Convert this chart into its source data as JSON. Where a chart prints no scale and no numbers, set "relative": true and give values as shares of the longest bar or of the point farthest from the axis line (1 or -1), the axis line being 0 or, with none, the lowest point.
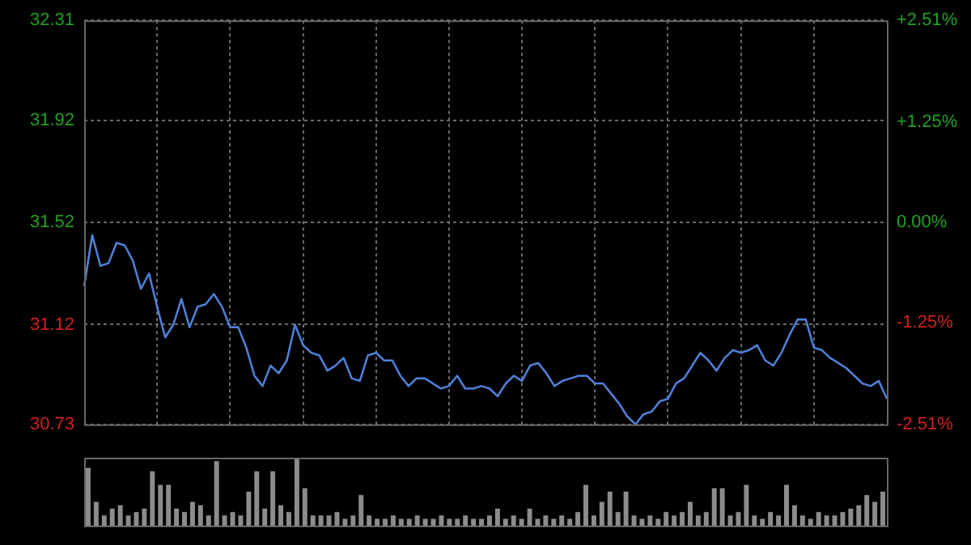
{
  "chart_data": [
    {
      "type": "line",
      "color": "#4f7fd6",
      "categories": [
        null,
        null,
        null,
        null,
        null,
        null,
        null,
        null,
        null,
        null,
        null,
        null,
        null,
        null,
        null,
        null,
        null,
        null,
        null,
        null,
        null,
        null,
        null,
        null,
        null,
        null,
        null,
        null,
        null,
        null,
        null,
        null,
        null,
        null,
        null,
        null,
        null,
        null,
        null,
        null,
        null,
        null,
        null,
        null,
        null,
        null,
        null,
        null,
        null,
        null,
        null,
        null,
        null,
        null,
        null,
        null,
        null,
        null,
        null,
        null,
        null,
        null,
        null,
        null,
        null,
        null,
        null,
        null,
        null,
        null,
        null,
        null,
        null,
        null,
        null,
        null,
        null,
        null,
        null,
        null,
        null,
        null,
        null,
        null,
        null,
        null,
        null,
        null,
        null,
        null,
        null,
        null,
        null,
        null,
        null,
        null,
        null,
        null,
        null,
        null
      ],
      "values": [
        31.27,
        31.47,
        31.35,
        31.36,
        31.44,
        31.43,
        31.37,
        31.26,
        31.32,
        31.19,
        31.07,
        31.12,
        31.22,
        31.11,
        31.19,
        31.2,
        31.24,
        31.19,
        31.11,
        31.11,
        31.03,
        30.92,
        30.88,
        30.96,
        30.93,
        30.98,
        31.12,
        31.04,
        31.01,
        31.0,
        30.94,
        30.96,
        30.99,
        30.91,
        30.9,
        31.0,
        31.01,
        30.98,
        30.98,
        30.92,
        30.88,
        30.91,
        30.91,
        30.89,
        30.87,
        30.88,
        30.92,
        30.87,
        30.87,
        30.88,
        30.87,
        30.84,
        30.89,
        30.92,
        30.9,
        30.96,
        30.97,
        30.93,
        30.88,
        30.9,
        30.91,
        30.92,
        30.92,
        30.89,
        30.89,
        30.85,
        30.81,
        30.76,
        30.73,
        30.77,
        30.78,
        30.82,
        30.83,
        30.89,
        30.91,
        30.96,
        31.01,
        30.98,
        30.94,
        30.99,
        31.02,
        31.01,
        31.02,
        31.04,
        30.98,
        30.96,
        31.01,
        31.08,
        31.14,
        31.14,
        31.03,
        31.02,
        30.99,
        30.97,
        30.95,
        30.92,
        30.89,
        30.88,
        30.9,
        30.83
      ],
      "ylim": [
        30.73,
        32.31
      ],
      "yticks": [
        30.73,
        31.12,
        31.52,
        31.92,
        32.31
      ],
      "y2lim": [
        -2.51,
        2.51
      ],
      "y2ticks": [
        {
          "value": -2.51,
          "label": "-2.51%"
        },
        {
          "value": -1.25,
          "label": "-1.25%"
        },
        {
          "value": 0,
          "label": "0.00%"
        },
        {
          "value": 1.25,
          "label": "+1.25%"
        },
        {
          "value": 2.51,
          "label": "+2.51%"
        }
      ],
      "grid": true
    },
    {
      "type": "bar",
      "relative": true,
      "color": "#8c8c8c",
      "categories": [
        null,
        null,
        null,
        null,
        null,
        null,
        null,
        null,
        null,
        null,
        null,
        null,
        null,
        null,
        null,
        null,
        null,
        null,
        null,
        null,
        null,
        null,
        null,
        null,
        null,
        null,
        null,
        null,
        null,
        null,
        null,
        null,
        null,
        null,
        null,
        null,
        null,
        null,
        null,
        null,
        null,
        null,
        null,
        null,
        null,
        null,
        null,
        null,
        null,
        null,
        null,
        null,
        null,
        null,
        null,
        null,
        null,
        null,
        null,
        null,
        null,
        null,
        null,
        null,
        null,
        null,
        null,
        null,
        null,
        null,
        null,
        null,
        null,
        null,
        null,
        null,
        null,
        null,
        null,
        null,
        null,
        null,
        null,
        null,
        null,
        null,
        null,
        null,
        null,
        null,
        null,
        null,
        null,
        null,
        null,
        null,
        null,
        null,
        null,
        null
      ],
      "values": [
        0.85,
        0.35,
        0.15,
        0.25,
        0.3,
        0.15,
        0.2,
        0.25,
        0.8,
        0.6,
        0.6,
        0.25,
        0.2,
        0.35,
        0.3,
        0.15,
        0.95,
        0.15,
        0.2,
        0.15,
        0.5,
        0.8,
        0.25,
        0.8,
        0.3,
        0.2,
        1,
        0.55,
        0.15,
        0.15,
        0.15,
        0.2,
        0.1,
        0.15,
        0.45,
        0.15,
        0.1,
        0.1,
        0.15,
        0.1,
        0.1,
        0.15,
        0.1,
        0.1,
        0.15,
        0.1,
        0.1,
        0.15,
        0.1,
        0.1,
        0.15,
        0.25,
        0.1,
        0.15,
        0.1,
        0.25,
        0.1,
        0.15,
        0.1,
        0.15,
        0.1,
        0.2,
        0.6,
        0.15,
        0.35,
        0.5,
        0.2,
        0.5,
        0.15,
        0.1,
        0.15,
        0.1,
        0.2,
        0.15,
        0.2,
        0.35,
        0.15,
        0.2,
        0.55,
        0.55,
        0.15,
        0.2,
        0.6,
        0.15,
        0.1,
        0.2,
        0.15,
        0.6,
        0.3,
        0.15,
        0.1,
        0.2,
        0.15,
        0.15,
        0.2,
        0.25,
        0.3,
        0.45,
        0.35,
        0.5
      ]
    }
  ]
}
